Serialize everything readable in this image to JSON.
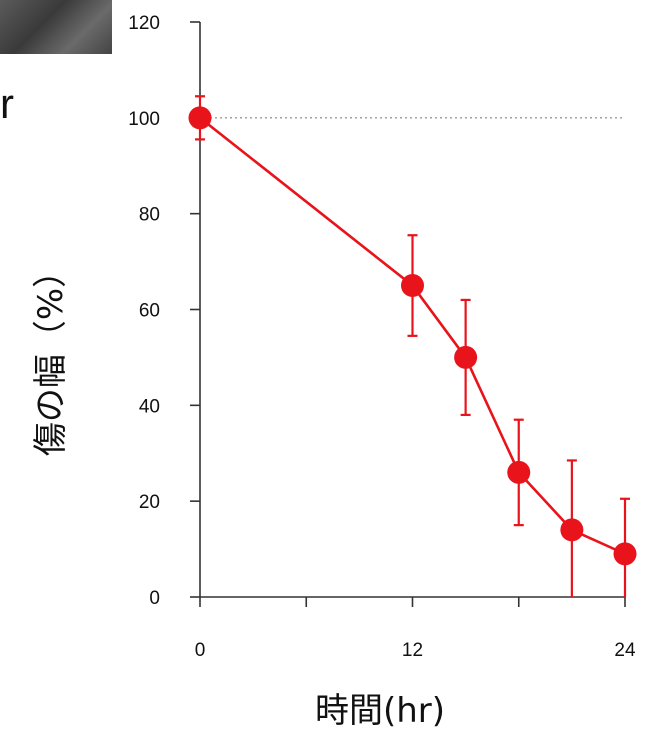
{
  "crop_text": "r",
  "chart_data": {
    "type": "line",
    "xlabel": "時間(hr)",
    "ylabel": "傷の幅（%）",
    "xlim": [
      0,
      24
    ],
    "ylim": [
      0,
      120
    ],
    "xticks": [
      0,
      12,
      24
    ],
    "xticks_minor": [
      6,
      18
    ],
    "yticks": [
      0,
      20,
      40,
      60,
      80,
      100,
      120
    ],
    "reference_line": 100,
    "series": [
      {
        "color": "#e8131b",
        "x": [
          0,
          12,
          15,
          18,
          21,
          24
        ],
        "y": [
          100,
          65,
          50,
          26,
          14,
          9
        ],
        "error": [
          4.5,
          10.5,
          12,
          11,
          14.5,
          11.5
        ]
      }
    ],
    "grid": false,
    "legend": "none"
  }
}
